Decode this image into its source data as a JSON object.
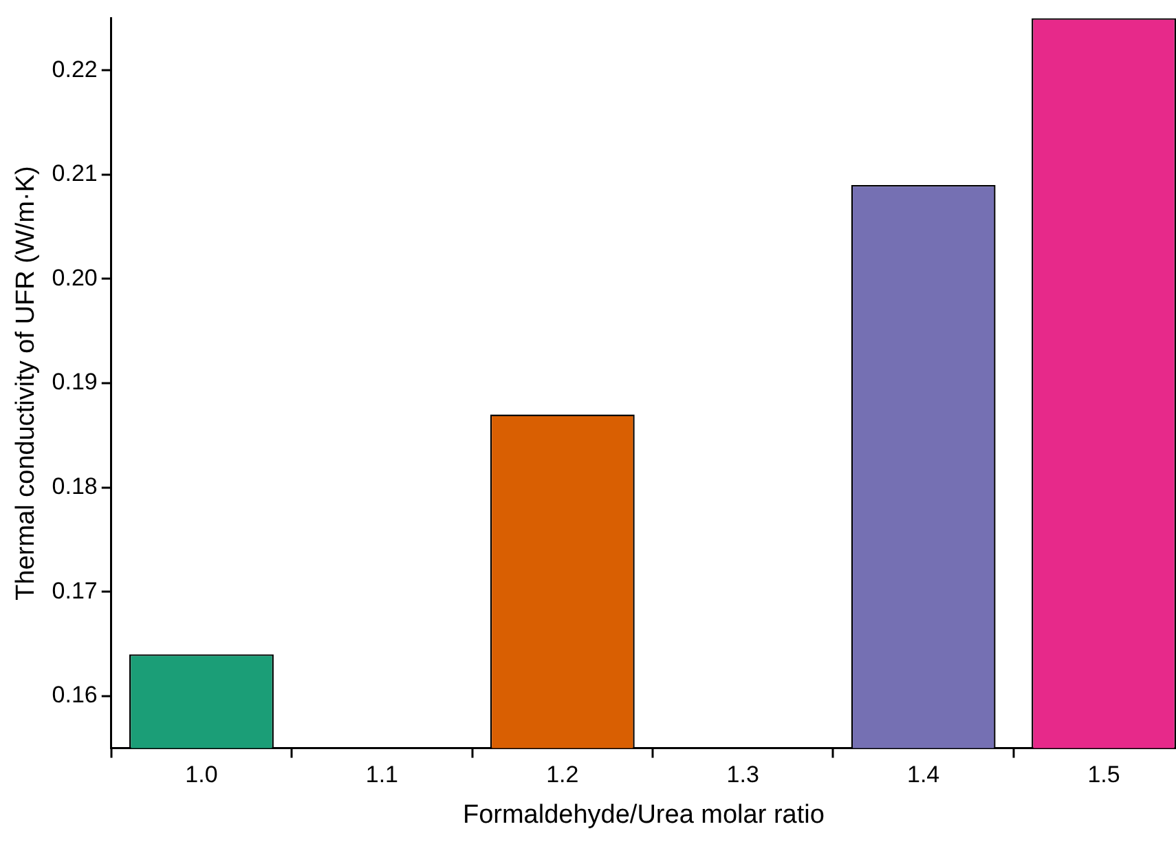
{
  "chart_data": {
    "type": "bar",
    "xlabel": "Formaldehyde/Urea molar ratio",
    "ylabel": "Thermal conductivity of UFR (W/m·K)",
    "x": [
      1.0,
      1.2,
      1.4,
      1.5
    ],
    "values": [
      0.164,
      0.187,
      0.209,
      0.225
    ],
    "colors": [
      "#1b9e77",
      "#d95f02",
      "#7570b3",
      "#e7298a"
    ],
    "xlim": [
      0.95,
      1.54
    ],
    "xticks": [
      {
        "value": 1.0,
        "label": "1.0"
      },
      {
        "value": 1.1,
        "label": "1.1"
      },
      {
        "value": 1.2,
        "label": "1.2"
      },
      {
        "value": 1.3,
        "label": "1.3"
      },
      {
        "value": 1.4,
        "label": "1.4"
      },
      {
        "value": 1.5,
        "label": "1.5"
      }
    ],
    "ylim": [
      0.155,
      0.225
    ],
    "yticks": [
      {
        "value": 0.16,
        "label": "0.16"
      },
      {
        "value": 0.17,
        "label": "0.17"
      },
      {
        "value": 0.18,
        "label": "0.18"
      },
      {
        "value": 0.19,
        "label": "0.19"
      },
      {
        "value": 0.2,
        "label": "0.20"
      },
      {
        "value": 0.21,
        "label": "0.21"
      },
      {
        "value": 0.22,
        "label": "0.22"
      }
    ]
  }
}
